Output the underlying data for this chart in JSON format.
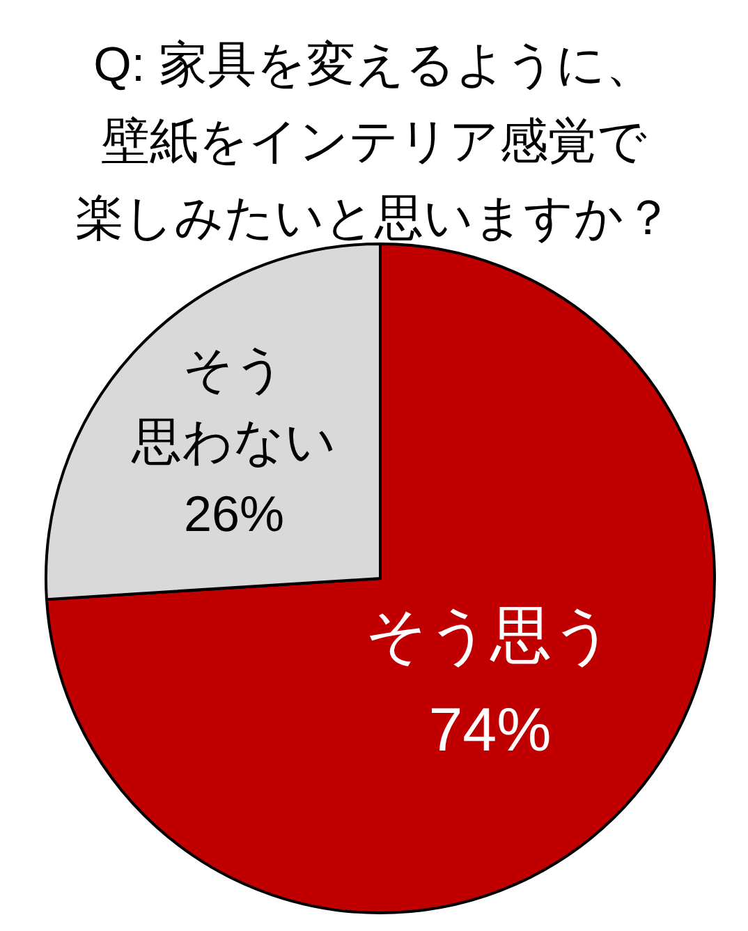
{
  "chart_data": {
    "type": "pie",
    "title": "Q: 家具を変えるように、壁紙をインテリア感覚で楽しみたいと思いますか？",
    "categories": [
      "そう思う",
      "そう思わない"
    ],
    "values": [
      74,
      26
    ],
    "colors": [
      "#c00000",
      "#d9d9d9"
    ],
    "value_labels": [
      "74%",
      "26%"
    ]
  }
}
